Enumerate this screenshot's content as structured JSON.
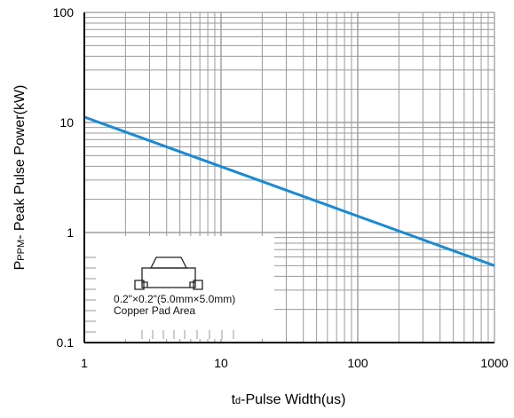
{
  "chart_data": {
    "type": "line",
    "scale": {
      "x": "log",
      "y": "log"
    },
    "xlim": [
      1,
      1000
    ],
    "ylim": [
      0.1,
      100
    ],
    "x_ticks": [
      "1",
      "10",
      "100",
      "1000"
    ],
    "y_ticks": [
      "0.1",
      "1",
      "10",
      "100"
    ],
    "xlabel_sub": "d",
    "xlabel_pre": "t",
    "xlabel_rest": "-Pulse Width(us)",
    "ylabel_pre": "P",
    "ylabel_sub": "PPM",
    "ylabel_rest": "- Peak Pulse Power(kW)",
    "grid": true,
    "series": [
      {
        "color": "#1a8ad4",
        "x": [
          1,
          1000
        ],
        "y": [
          11.2,
          0.5
        ]
      }
    ]
  },
  "inset": {
    "line1": "0.2\"×0.2\"(5.0mm×5.0mm)",
    "line2": "Copper Pad Area"
  },
  "colors": {
    "line": "#1a8ad4",
    "grid": "#9a9a9a",
    "axis": "#000000"
  }
}
